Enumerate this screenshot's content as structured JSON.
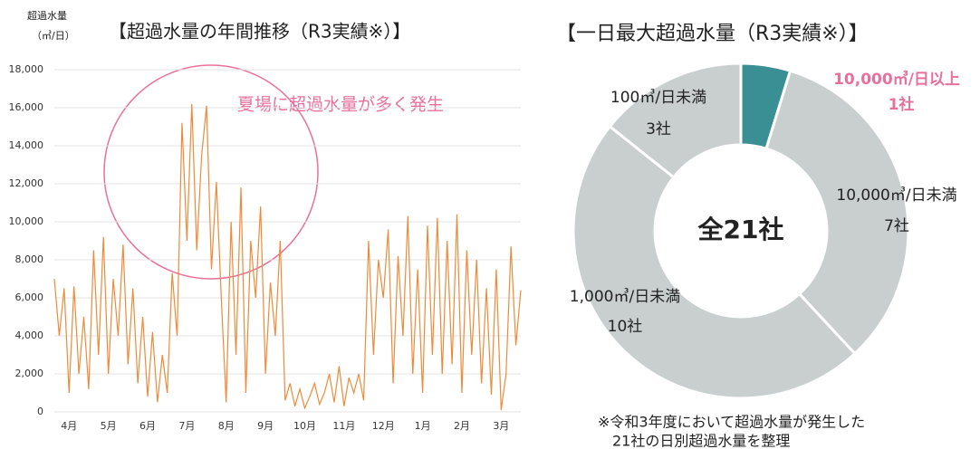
{
  "chart_data": [
    {
      "type": "line",
      "title": "【超過水量の年間推移（R3実績※）】",
      "y_label": [
        "超過水量",
        "（㎥/日）"
      ],
      "annotation": "夏場に超過水量が多く発生",
      "categories": [
        null,
        null,
        null,
        "4月",
        null,
        null,
        null,
        null,
        null,
        null,
        null,
        "5月",
        null,
        null,
        null,
        null,
        null,
        null,
        null,
        "6月",
        null,
        null,
        null,
        null,
        null,
        null,
        null,
        "7月",
        null,
        null,
        null,
        null,
        null,
        null,
        null,
        "8月",
        null,
        null,
        null,
        null,
        null,
        null,
        null,
        "9月",
        null,
        null,
        null,
        null,
        null,
        null,
        null,
        "10月",
        null,
        null,
        null,
        null,
        null,
        null,
        null,
        "11月",
        null,
        null,
        null,
        null,
        null,
        null,
        null,
        "12月",
        null,
        null,
        null,
        null,
        null,
        null,
        null,
        "1月",
        null,
        null,
        null,
        null,
        null,
        null,
        null,
        "2月",
        null,
        null,
        null,
        null,
        null,
        null,
        null,
        "3月",
        null,
        null,
        null,
        null
      ],
      "values": [
        7000,
        4000,
        6500,
        1000,
        6600,
        2000,
        5000,
        1200,
        8500,
        3000,
        9200,
        2000,
        7000,
        4000,
        8800,
        2500,
        6500,
        1500,
        5000,
        800,
        4200,
        500,
        3000,
        1000,
        7300,
        4000,
        15200,
        9000,
        16200,
        8500,
        13500,
        16100,
        7500,
        12100,
        6000,
        500,
        10000,
        3000,
        11800,
        1000,
        9000,
        6000,
        10800,
        2000,
        6800,
        4000,
        9000,
        600,
        1500,
        300,
        1200,
        200,
        800,
        1500,
        400,
        1000,
        2000,
        500,
        2400,
        300,
        1800,
        1000,
        2000,
        600,
        9000,
        3000,
        8000,
        6000,
        9600,
        1500,
        8200,
        4000,
        10300,
        2000,
        7500,
        1000,
        9800,
        3000,
        10200,
        2000,
        9000,
        2500,
        10400,
        1000,
        8500,
        3000,
        8000,
        1500,
        6500,
        900,
        7500,
        100,
        2000,
        8700,
        3500,
        6400
      ],
      "color": "#ee8a3a",
      "ylim": [
        0,
        18000
      ],
      "yticks": [
        0,
        {
          "value": 2000,
          "label": "2,000"
        },
        {
          "value": 4000,
          "label": "4,000"
        },
        {
          "value": 6000,
          "label": "6,000"
        },
        {
          "value": 8000,
          "label": "8,000"
        },
        {
          "value": 10000,
          "label": "10,000"
        },
        {
          "value": 12000,
          "label": "12,000"
        },
        {
          "value": 14000,
          "label": "14,000"
        },
        {
          "value": 16000,
          "label": "16,000"
        },
        {
          "value": 18000,
          "label": "18,000"
        }
      ],
      "grid": true
    },
    {
      "type": "pie",
      "title": "【一日最大超過水量（R3実績※）】",
      "center_label": "全21社",
      "categories": [
        "10,000㎥/日以上",
        "10,000㎥/日未満",
        "1,000㎥/日未満",
        "100㎥/日未満"
      ],
      "values": [
        1,
        7,
        10,
        3
      ],
      "value_labels": [
        "1社",
        "7社",
        "10社",
        "3社"
      ],
      "colors": [
        "#3a8f95",
        "#c9cfcf",
        "#c9cfcf",
        "#c9cfcf"
      ],
      "note": [
        "※令和3年度において超過水量が発生した",
        "21社の日別超過水量を整理"
      ]
    }
  ]
}
